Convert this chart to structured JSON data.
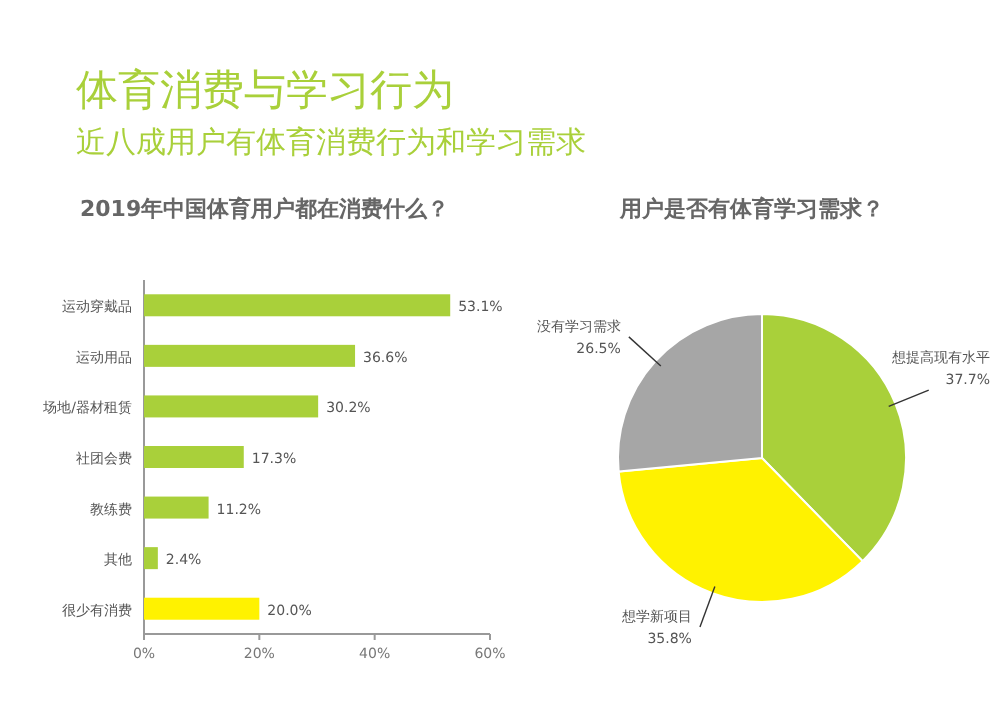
{
  "chart_data": [
    {
      "type": "bar",
      "orientation": "horizontal",
      "title": "2019年中国体育用户都在消费什么？",
      "annotations": [
        "体育消费与学习行为",
        "近八成用户有体育消费行为和学习需求"
      ],
      "categories": [
        "运动穿戴品",
        "运动用品",
        "场地/器材租赁",
        "社团会费",
        "教练费",
        "其他",
        "很少有消费"
      ],
      "values": [
        53.1,
        36.6,
        30.2,
        17.3,
        11.2,
        2.4,
        20.0
      ],
      "colors": [
        "#a9d03a",
        "#a9d03a",
        "#a9d03a",
        "#a9d03a",
        "#a9d03a",
        "#a9d03a",
        "#fff200"
      ],
      "value_labels": [
        "53.1%",
        "36.6%",
        "30.2%",
        "17.3%",
        "11.2%",
        "2.4%",
        "20.0%"
      ],
      "xlim": [
        0,
        60
      ],
      "xticks": [
        {
          "value": 0,
          "label": "0%"
        },
        {
          "value": 20,
          "label": "20%"
        },
        {
          "value": 40,
          "label": "40%"
        },
        {
          "value": 60,
          "label": "60%"
        }
      ]
    },
    {
      "type": "pie",
      "title": "用户是否有体育学习需求？",
      "categories": [
        "想提高现有水平",
        "想学新项目",
        "没有学习需求"
      ],
      "values": [
        37.7,
        35.8,
        26.5
      ],
      "colors": [
        "#a9d03a",
        "#fff200",
        "#a6a6a6"
      ],
      "value_labels": [
        "37.7%",
        "35.8%",
        "26.5%"
      ]
    }
  ]
}
